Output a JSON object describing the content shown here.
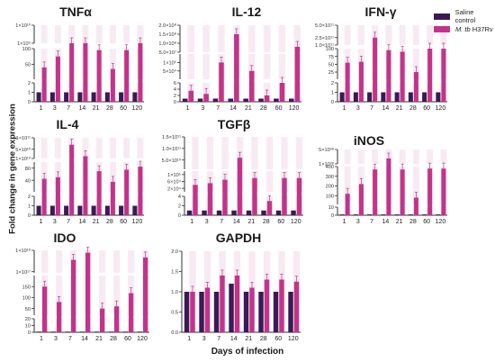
{
  "legend": {
    "control": "Saline control",
    "infected_prefix": "M. tb",
    "infected_suffix": " H37Rv"
  },
  "axis_titles": {
    "y": "Fold change in gene expression",
    "x": "Days of infection"
  },
  "colors": {
    "control": "#3a1a54",
    "infected": "#c2348a",
    "infected_light": "#f2d8ea",
    "axis": "#333333"
  },
  "chart_data": [
    {
      "type": "bar",
      "title": "TNFα",
      "categories": [
        "1",
        "3",
        "7",
        "14",
        "21",
        "28",
        "60",
        "120"
      ],
      "series": [
        {
          "name": "Saline control",
          "values": [
            1,
            1,
            1,
            1,
            1,
            1,
            1,
            1
          ]
        },
        {
          "name": "M. tb H37Rv",
          "values": [
            40,
            75,
            130,
            330,
            95,
            35,
            95,
            110
          ]
        }
      ],
      "segments": [
        {
          "range": [
            1000000000.0,
            10000000000.0
          ],
          "ticks": [
            {
              "v": 1000000000.0,
              "l": "1×10⁹"
            },
            {
              "v": 10000000000.0,
              "l": "1×10¹⁰"
            }
          ]
        },
        {
          "range": [
            2,
            100
          ],
          "ticks": [
            {
              "v": 50,
              "l": "50"
            },
            {
              "v": 100,
              "l": "100"
            }
          ]
        },
        {
          "range": [
            0,
            2
          ],
          "ticks": [
            {
              "v": 0,
              "l": "0"
            },
            {
              "v": 1,
              "l": "1"
            },
            {
              "v": 2,
              "l": "2"
            }
          ]
        }
      ]
    },
    {
      "type": "bar",
      "title": "IL-12",
      "categories": [
        "1",
        "3",
        "7",
        "14",
        "21",
        "28",
        "60",
        "120"
      ],
      "series": [
        {
          "name": "Saline control",
          "values": [
            1,
            1,
            1,
            1,
            1,
            1,
            1,
            1
          ]
        },
        {
          "name": "M. tb H37Rv",
          "values": [
            3.5,
            2.5,
            100000.0,
            150000000.0,
            50000.0,
            2.0,
            6.0,
            80000000.0
          ]
        }
      ],
      "segments": [
        {
          "range": [
            50000000.0,
            200000000.0
          ],
          "ticks": [
            {
              "v": 50000000.0,
              "l": "5.0×10⁷"
            },
            {
              "v": 100000000.0,
              "l": "1.0×10⁸"
            },
            {
              "v": 150000000.0,
              "l": "1.5×10⁸"
            },
            {
              "v": 200000000.0,
              "l": "2.0×10⁸"
            }
          ]
        },
        {
          "range": [
            1000.0,
            150000.0
          ],
          "ticks": [
            {
              "v": 50000.0,
              "l": "5×10⁴"
            },
            {
              "v": 100000.0,
              "l": "1×10⁵"
            }
          ]
        },
        {
          "range": [
            0,
            6
          ],
          "ticks": [
            {
              "v": 0,
              "l": "0"
            },
            {
              "v": 2,
              "l": "2"
            },
            {
              "v": 4,
              "l": "4"
            },
            {
              "v": 6,
              "l": "6"
            }
          ]
        }
      ]
    },
    {
      "type": "bar",
      "title": "IFN-γ",
      "categories": [
        "1",
        "3",
        "7",
        "14",
        "21",
        "28",
        "60",
        "120"
      ],
      "series": [
        {
          "name": "Saline control",
          "values": [
            1,
            1,
            1,
            1,
            1,
            1,
            1,
            1
          ]
        },
        {
          "name": "M. tb H37Rv",
          "values": [
            55,
            58,
            250000000000.0,
            95,
            90,
            25,
            100,
            100
          ]
        }
      ],
      "segments": [
        {
          "range": [
            100000000000.0,
            500000000000.0
          ],
          "ticks": [
            {
              "v": 100000000000.0,
              "l": "1.0×10¹¹"
            },
            {
              "v": 250000000000.0,
              "l": "2.5×10¹¹"
            },
            {
              "v": 500000000000.0,
              "l": "5.0×10¹¹"
            }
          ]
        },
        {
          "range": [
            2,
            100
          ],
          "ticks": [
            {
              "v": 25,
              "l": "25"
            },
            {
              "v": 50,
              "l": "50"
            },
            {
              "v": 75,
              "l": "75"
            },
            {
              "v": 100,
              "l": "100"
            }
          ]
        },
        {
          "range": [
            0,
            2
          ],
          "ticks": [
            {
              "v": 0,
              "l": "0"
            },
            {
              "v": 1,
              "l": "1"
            },
            {
              "v": 2,
              "l": "2"
            }
          ]
        }
      ]
    },
    {
      "type": "bar",
      "title": "IL-4",
      "categories": [
        "1",
        "3",
        "7",
        "14",
        "21",
        "28",
        "60",
        "120"
      ],
      "series": [
        {
          "name": "Saline control",
          "values": [
            1,
            1,
            1,
            1,
            1,
            1,
            1,
            1
          ]
        },
        {
          "name": "M. tb H37Rv",
          "values": [
            45,
            50,
            70000000000.0,
            20000000000.0,
            70,
            35,
            75,
            85
          ]
        }
      ],
      "segments": [
        {
          "range": [
            10000000000.0,
            100000000000.0
          ],
          "ticks": [
            {
              "v": 10000000000.0,
              "l": "1×10¹⁰"
            },
            {
              "v": 50000000000.0,
              "l": "5×10¹⁰"
            },
            {
              "v": 100000000000.0,
              "l": "1×10¹¹"
            }
          ]
        },
        {
          "range": [
            2,
            100
          ],
          "ticks": [
            {
              "v": 40,
              "l": "40"
            },
            {
              "v": 80,
              "l": "80"
            }
          ]
        },
        {
          "range": [
            0,
            2
          ],
          "ticks": [
            {
              "v": 0,
              "l": "0"
            },
            {
              "v": 1,
              "l": "1"
            },
            {
              "v": 2,
              "l": "2"
            }
          ]
        }
      ]
    },
    {
      "type": "bar",
      "title": "TGFβ",
      "categories": [
        "1",
        "3",
        "7",
        "14",
        "21",
        "28",
        "60",
        "120"
      ],
      "series": [
        {
          "name": "Saline control",
          "values": [
            1,
            1,
            1,
            1,
            1,
            1,
            1,
            1
          ]
        },
        {
          "name": "M. tb H37Rv",
          "values": [
            40000.0,
            50000.0,
            70000.0,
            60000000000.0,
            80000.0,
            3.0,
            80000.0,
            80000.0
          ]
        }
      ],
      "segments": [
        {
          "range": [
            10000000000.0,
            150000000000.0
          ],
          "ticks": [
            {
              "v": 50000000000.0,
              "l": "5.0×10¹⁰"
            },
            {
              "v": 100000000000.0,
              "l": "1.0×10¹¹"
            },
            {
              "v": 150000000000.0,
              "l": "1.5×10¹¹"
            }
          ]
        },
        {
          "range": [
            2,
            120000.0
          ],
          "ticks": [
            {
              "v": 20000.0,
              "l": "2×10⁴"
            },
            {
              "v": 60000.0,
              "l": "6×10⁴"
            },
            {
              "v": 100000.0,
              "l": "1×10⁵"
            }
          ]
        },
        {
          "range": [
            0,
            4
          ],
          "ticks": [
            {
              "v": 0,
              "l": "0"
            },
            {
              "v": 2,
              "l": "2"
            },
            {
              "v": 4,
              "l": "4"
            }
          ]
        }
      ]
    },
    {
      "type": "bar",
      "title": "iNOS",
      "categories": [
        "1",
        "3",
        "7",
        "14",
        "21",
        "28",
        "60",
        "120"
      ],
      "series": [
        {
          "name": "Saline control",
          "values": [
            1,
            1,
            1,
            1,
            1,
            1,
            1,
            1
          ]
        },
        {
          "name": "M. tb H37Rv",
          "values": [
            120,
            220,
            370,
            2.5e+38,
            370,
            80,
            380,
            380
          ]
        }
      ],
      "segments": [
        {
          "range": [
            1e+38,
            5e+38
          ],
          "ticks": [
            {
              "v": 1e+38,
              "l": "1×10³⁸"
            },
            {
              "v": 5e+38,
              "l": "5×10³⁸"
            }
          ]
        },
        {
          "range": [
            10,
            400
          ],
          "ticks": [
            {
              "v": 100,
              "l": "100"
            },
            {
              "v": 200,
              "l": "200"
            },
            {
              "v": 300,
              "l": "300"
            },
            {
              "v": 400,
              "l": "400"
            }
          ]
        },
        {
          "range": [
            0,
            10
          ],
          "ticks": [
            {
              "v": 0,
              "l": "0"
            },
            {
              "v": 10,
              "l": "10"
            }
          ]
        }
      ]
    },
    {
      "type": "bar",
      "title": "IDO",
      "categories": [
        "1",
        "3",
        "7",
        "14",
        "21",
        "28",
        "60",
        "120"
      ],
      "series": [
        {
          "name": "Saline control",
          "values": [
            1,
            1,
            1,
            1,
            1,
            1,
            1,
            1
          ]
        },
        {
          "name": "M. tb H37Rv",
          "values": [
            150,
            80,
            6e+17,
            9e+17,
            50,
            60,
            120,
            7e+17
          ]
        }
      ],
      "segments": [
        {
          "range": [
            5e+16,
            1e+18
          ],
          "ticks": [
            {
              "v": 1e+17,
              "l": "1×10¹⁷"
            },
            {
              "v": 1e+18,
              "l": "1×10¹⁸"
            }
          ]
        },
        {
          "range": [
            20,
            200
          ],
          "ticks": [
            {
              "v": 50,
              "l": "50"
            },
            {
              "v": 100,
              "l": "100"
            },
            {
              "v": 150,
              "l": "150"
            }
          ]
        },
        {
          "range": [
            0,
            20
          ],
          "ticks": [
            {
              "v": 0,
              "l": "0"
            },
            {
              "v": 10,
              "l": "10"
            },
            {
              "v": 20,
              "l": "20"
            }
          ]
        }
      ]
    },
    {
      "type": "bar",
      "title": "GAPDH",
      "categories": [
        "1",
        "3",
        "7",
        "14",
        "21",
        "28",
        "60",
        "120"
      ],
      "series": [
        {
          "name": "Saline control",
          "values": [
            1.0,
            1.0,
            1.0,
            1.2,
            1.0,
            1.0,
            1.0,
            1.0
          ]
        },
        {
          "name": "M. tb H37Rv",
          "values": [
            1.0,
            1.1,
            1.4,
            1.4,
            1.1,
            1.3,
            1.3,
            1.25
          ]
        }
      ],
      "segments": [
        {
          "range": [
            0,
            2
          ],
          "ticks": [
            {
              "v": 0,
              "l": "0.0"
            },
            {
              "v": 0.5,
              "l": "0.5"
            },
            {
              "v": 1.0,
              "l": "1.0"
            },
            {
              "v": 1.5,
              "l": "1.5"
            },
            {
              "v": 2.0,
              "l": "2.0"
            }
          ]
        }
      ]
    }
  ]
}
